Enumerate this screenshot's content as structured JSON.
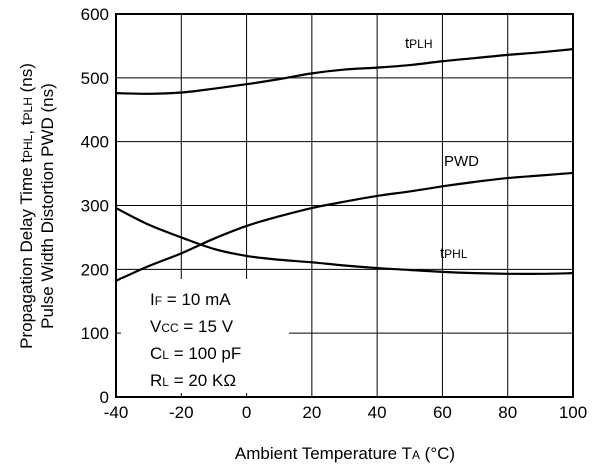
{
  "chart_data": {
    "type": "line",
    "title": "",
    "xlabel": {
      "main": "Ambient Temperature T",
      "sub": "A",
      "unit": " (°C)"
    },
    "ylabel": {
      "line1_prefix": "Propagation Delay Time t",
      "line1_sub1": "PHL",
      "line1_mid": ", t",
      "line1_sub2": "PLH",
      "line1_suffix": " (ns)",
      "line2": "Pulse Width Distortion PWD (ns)"
    },
    "xlim": [
      -40,
      100
    ],
    "ylim": [
      0,
      600
    ],
    "xticks": [
      -40,
      -20,
      0,
      20,
      40,
      60,
      80,
      100
    ],
    "yticks": [
      0,
      100,
      200,
      300,
      400,
      500,
      600
    ],
    "grid": true,
    "series": [
      {
        "name": "tPLH",
        "label": {
          "main": "t",
          "sub": "PLH"
        },
        "x": [
          -40,
          -30,
          -20,
          -10,
          0,
          10,
          20,
          30,
          40,
          50,
          60,
          70,
          80,
          90,
          100
        ],
        "y": [
          476,
          475,
          477,
          483,
          490,
          498,
          507,
          513,
          516,
          520,
          526,
          531,
          536,
          540,
          545
        ]
      },
      {
        "name": "PWD",
        "label": {
          "main": "PWD",
          "sub": ""
        },
        "x": [
          -40,
          -30,
          -20,
          -10,
          0,
          10,
          20,
          30,
          40,
          50,
          60,
          70,
          80,
          90,
          100
        ],
        "y": [
          182,
          205,
          225,
          248,
          268,
          283,
          296,
          306,
          315,
          322,
          330,
          337,
          343,
          347,
          351
        ]
      },
      {
        "name": "tPHL",
        "label": {
          "main": "t",
          "sub": "PHL"
        },
        "x": [
          -40,
          -30,
          -20,
          -10,
          0,
          10,
          20,
          30,
          40,
          50,
          60,
          70,
          80,
          90,
          100
        ],
        "y": [
          296,
          270,
          250,
          232,
          221,
          215,
          211,
          206,
          202,
          199,
          196,
          194,
          193,
          193,
          194
        ]
      }
    ],
    "conditions": [
      {
        "main": "I",
        "sub": "F",
        "value": " = 10 mA"
      },
      {
        "main": "V",
        "sub": "CC",
        "value": " = 15 V"
      },
      {
        "main": "C",
        "sub": "L",
        "value": " = 100 pF"
      },
      {
        "main": "R",
        "sub": "L",
        "value": " = 20 KΩ"
      }
    ]
  }
}
